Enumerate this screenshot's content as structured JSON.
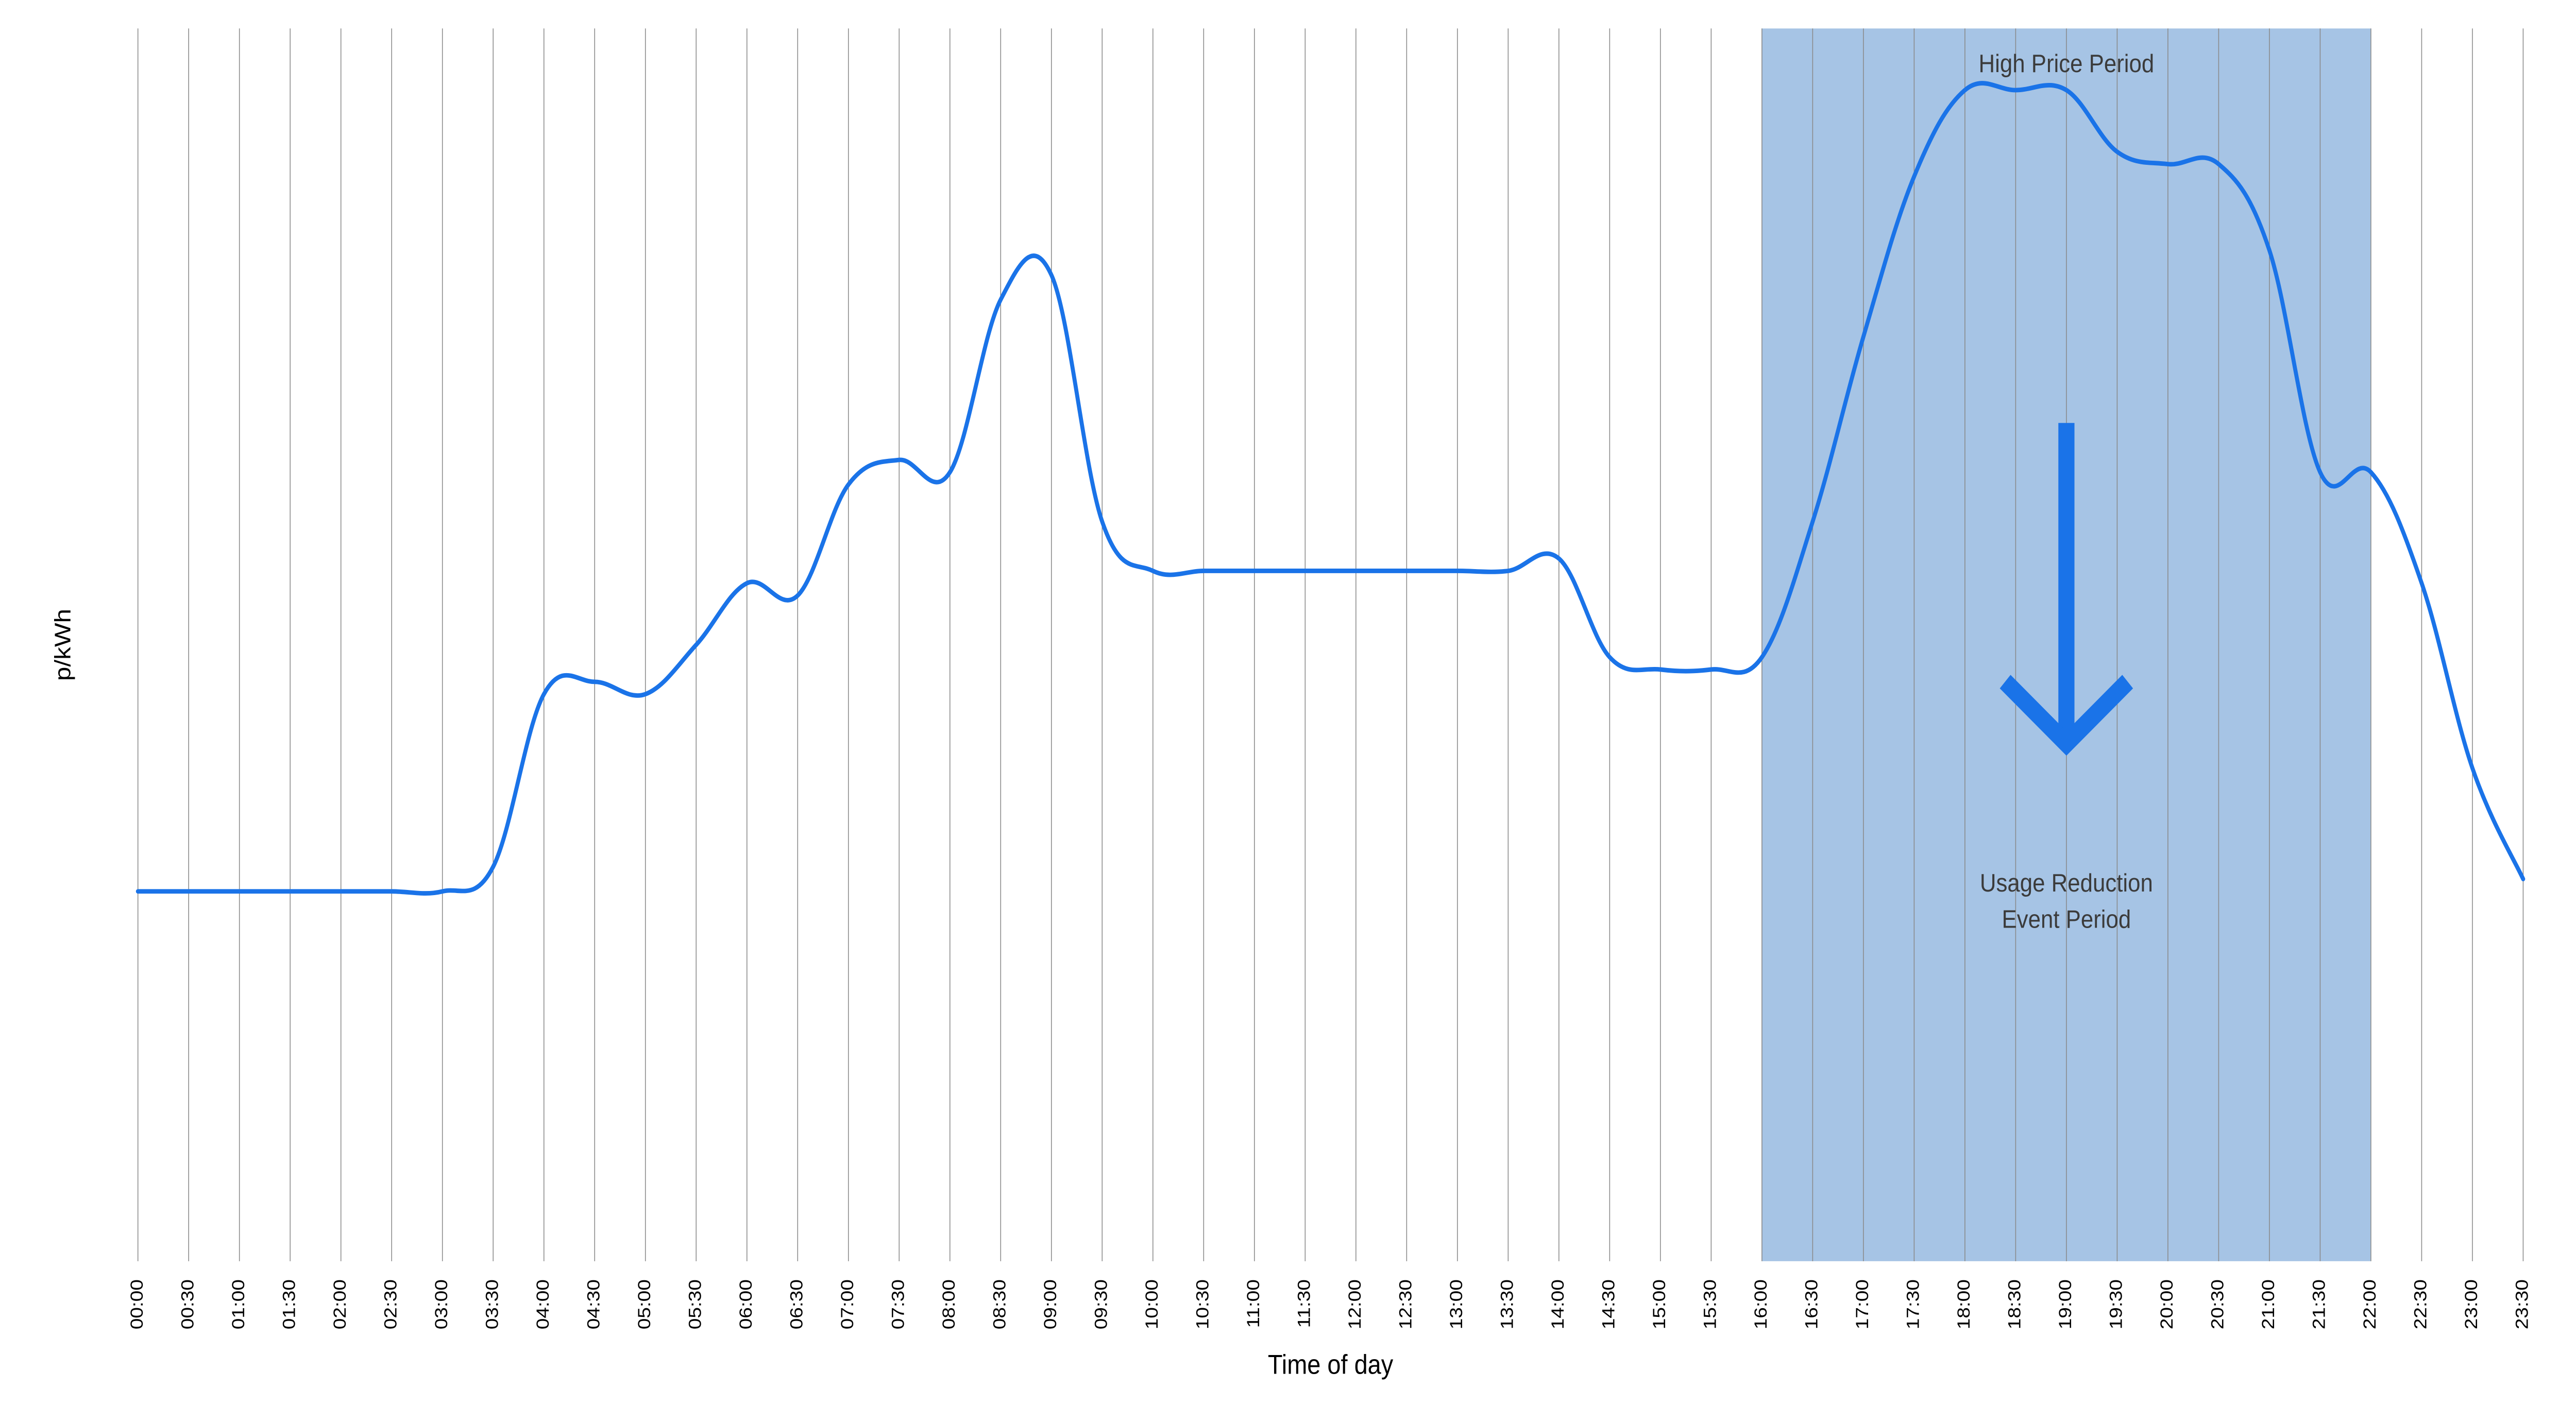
{
  "chart": {
    "type": "line",
    "y_axis_label": "p/kWh",
    "x_axis_label": "Time of day",
    "x_ticks": [
      "00:00",
      "00:30",
      "01:00",
      "01:30",
      "02:00",
      "02:30",
      "03:00",
      "03:30",
      "04:00",
      "04:30",
      "05:00",
      "05:30",
      "06:00",
      "06:30",
      "07:00",
      "07:30",
      "08:00",
      "08:30",
      "09:00",
      "09:30",
      "10:00",
      "10:30",
      "11:00",
      "11:30",
      "12:00",
      "12:30",
      "13:00",
      "13:30",
      "14:00",
      "14:30",
      "15:00",
      "15:30",
      "16:00",
      "16:30",
      "17:00",
      "17:30",
      "18:00",
      "18:30",
      "19:00",
      "19:30",
      "20:00",
      "20:30",
      "21:00",
      "21:30",
      "22:00",
      "22:30",
      "23:00",
      "23:30"
    ],
    "y_values": [
      30,
      30,
      30,
      30,
      30,
      30,
      30,
      32,
      46,
      47,
      46,
      50,
      55,
      54,
      63,
      65,
      64,
      78,
      80,
      60,
      56,
      56,
      56,
      56,
      56,
      56,
      56,
      56,
      57,
      49,
      48,
      48,
      49,
      60,
      75,
      88,
      95,
      95,
      95,
      90,
      89,
      89,
      82,
      64,
      64,
      55,
      40,
      31
    ],
    "ylim": [
      0,
      100
    ],
    "line_color": "#1a73e8",
    "line_width": 2.5,
    "background_color": "#ffffff",
    "grid_color": "#8a8a8a",
    "grid_width": 0.5,
    "highlight_band": {
      "start_tick": "16:00",
      "end_tick": "22:00",
      "fill_color": "#a6c4e5",
      "opacity": 1.0
    },
    "annotations": {
      "top_label": "High Price Period",
      "bottom_label_line1": "Usage Reduction",
      "bottom_label_line2": "Event Period",
      "arrow_color": "#1a73e8",
      "arrow_stroke_width": 10,
      "label_color": "#3b3b3b",
      "label_fontsize": 14
    },
    "tick_fontsize": 11,
    "axis_label_fontsize": 15,
    "font_family": "Helvetica Neue, Arial, sans-serif"
  }
}
